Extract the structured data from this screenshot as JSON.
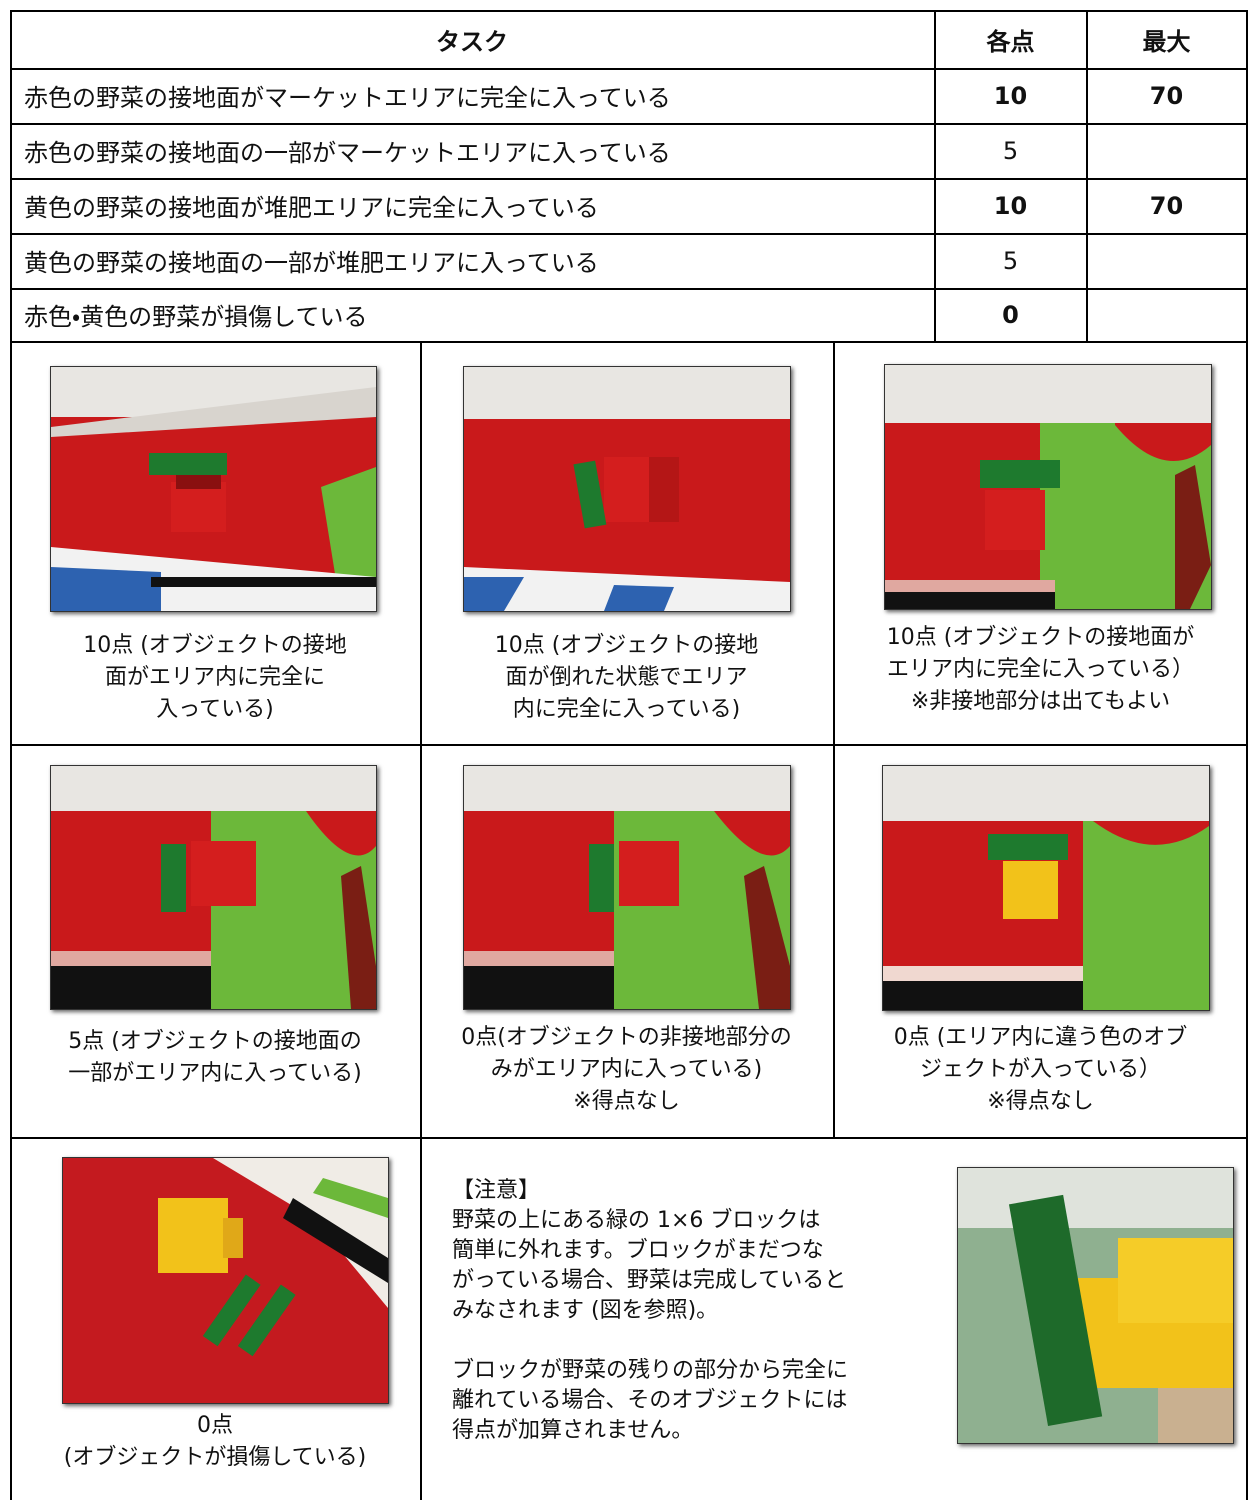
{
  "table": {
    "header": [
      "タスク",
      "各点",
      "最大"
    ],
    "rows": [
      {
        "task": "赤色の野菜の接地面がマーケットエリアに完全に入っている",
        "points": 10,
        "max": 70
      },
      {
        "task": "赤色の野菜の接地面の一部がマーケットエリアに入っている",
        "points": 5
      },
      {
        "task": "黄色の野菜の接地面が堆肥エリアに完全に入っている",
        "points": 10,
        "max": 70
      },
      {
        "task": "黄色の野菜の接地面の一部が堆肥エリアに入っている",
        "points": 5
      },
      {
        "task": "赤色・黄色の野菜が損傷している",
        "points": 0
      }
    ]
  },
  "examples": [
    {
      "lines": [
        "10点 (オブジェクトの接地",
        "面がエリア内に完全に",
        "入っている)"
      ]
    },
    {
      "lines": [
        "10点 (オブジェクトの接地",
        "面が倒れた状態でエリア",
        "内に完全に入っている)"
      ]
    },
    {
      "lines": [
        "10点 (オブジェクトの接地面が",
        "エリア内に完全に入っている）",
        "※非接地部分は出てもよい"
      ]
    },
    {
      "lines": [
        "5点 (オブジェクトの接地面の",
        "一部がエリア内に入っている)"
      ]
    },
    {
      "lines": [
        "0点(オブジェクトの非接地部分の",
        "みがエリア内に入っている)",
        "※得点なし"
      ]
    },
    {
      "lines": [
        "0点 (エリア内に違う色のオブ",
        "ジェクトが入っている）",
        "※得点なし"
      ]
    },
    {
      "lines": [
        "0点",
        "(オブジェクトが損傷している)"
      ]
    }
  ],
  "note": {
    "title": "【注意】",
    "paragraphs": [
      [
        "野菜の上にある緑の 1×6 ブロックは",
        "簡単に外れます。ブロックがまだつな",
        "がっている場合、野菜は完成していると",
        "みなされます (図を参照)。"
      ],
      [
        "ブロックが野菜の残りの部分から完全に",
        "離れている場合、そのオブジェクトには",
        "得点が加算されません。"
      ]
    ]
  }
}
